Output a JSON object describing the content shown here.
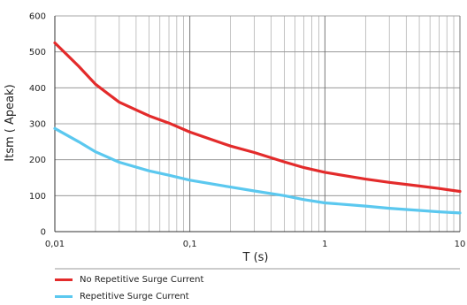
{
  "chart_data": {
    "type": "line",
    "title": "",
    "xlabel": "T (s)",
    "ylabel": "Itsm ( Apeak)",
    "x_scale": "log",
    "xlim": [
      0.01,
      10
    ],
    "ylim": [
      0,
      600
    ],
    "x_ticks": [
      0.01,
      0.1,
      1,
      10
    ],
    "x_tick_labels": [
      "0,01",
      "0,1",
      "1",
      "10"
    ],
    "y_ticks": [
      0,
      100,
      200,
      300,
      400,
      500,
      600
    ],
    "y_tick_labels": [
      "0",
      "100",
      "200",
      "300",
      "400",
      "500",
      "600"
    ],
    "grid": true,
    "legend_position": "bottom",
    "series": [
      {
        "name": "No Repetitive Surge Current",
        "color": "#e32b2b",
        "x": [
          0.01,
          0.015,
          0.02,
          0.03,
          0.05,
          0.07,
          0.1,
          0.2,
          0.3,
          0.5,
          0.7,
          1,
          2,
          3,
          5,
          7,
          10
        ],
        "y": [
          525,
          460,
          410,
          360,
          322,
          302,
          277,
          238,
          220,
          194,
          178,
          165,
          146,
          137,
          127,
          120,
          112
        ]
      },
      {
        "name": "Repetitive Surge Current",
        "color": "#5bc8ef",
        "x": [
          0.01,
          0.015,
          0.02,
          0.03,
          0.05,
          0.07,
          0.1,
          0.2,
          0.3,
          0.5,
          0.7,
          1,
          2,
          3,
          5,
          7,
          10
        ],
        "y": [
          287,
          250,
          222,
          193,
          169,
          157,
          143,
          124,
          113,
          100,
          89,
          80,
          71,
          65,
          59,
          55,
          52
        ]
      }
    ]
  }
}
